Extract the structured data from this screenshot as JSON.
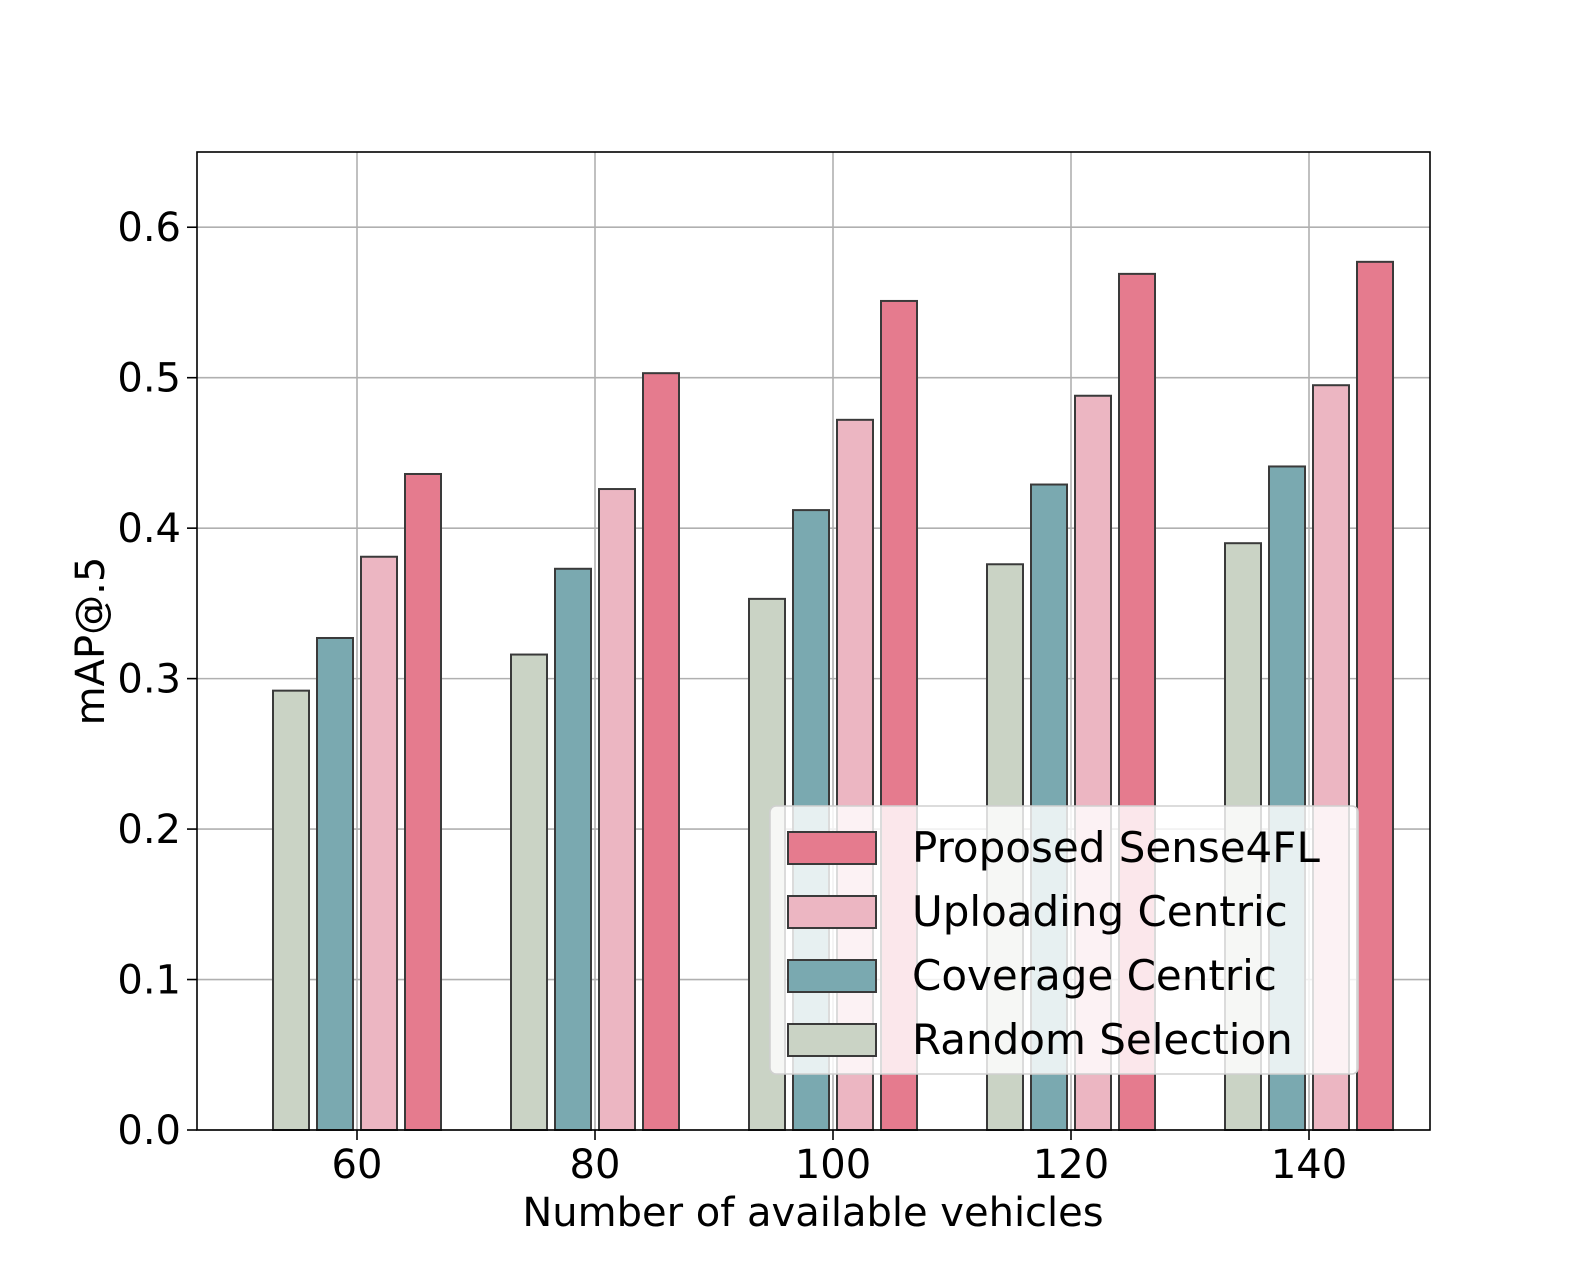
{
  "chart_data": {
    "type": "bar",
    "title": "",
    "xlabel": "Number of available vehicles",
    "ylabel": "mAP@.5",
    "categories": [
      "60",
      "80",
      "100",
      "120",
      "140"
    ],
    "ylim": [
      0,
      0.65
    ],
    "yticks": [
      "0.0",
      "0.1",
      "0.2",
      "0.3",
      "0.4",
      "0.5",
      "0.6"
    ],
    "grid": true,
    "legend_position": "bottom-right",
    "series": [
      {
        "name": "Random Selection",
        "color": "#cad3c5",
        "values": [
          0.292,
          0.316,
          0.353,
          0.376,
          0.39
        ]
      },
      {
        "name": "Coverage Centric",
        "color": "#7aa9b0",
        "values": [
          0.327,
          0.373,
          0.412,
          0.429,
          0.441
        ]
      },
      {
        "name": "Uploading Centric",
        "color": "#ecb6c2",
        "values": [
          0.381,
          0.426,
          0.472,
          0.488,
          0.495
        ]
      },
      {
        "name": "Proposed Sense4FL",
        "color": "#e57b8e",
        "values": [
          0.436,
          0.503,
          0.551,
          0.569,
          0.577
        ]
      }
    ],
    "legend_order": [
      "Proposed Sense4FL",
      "Uploading Centric",
      "Coverage Centric",
      "Random Selection"
    ]
  }
}
